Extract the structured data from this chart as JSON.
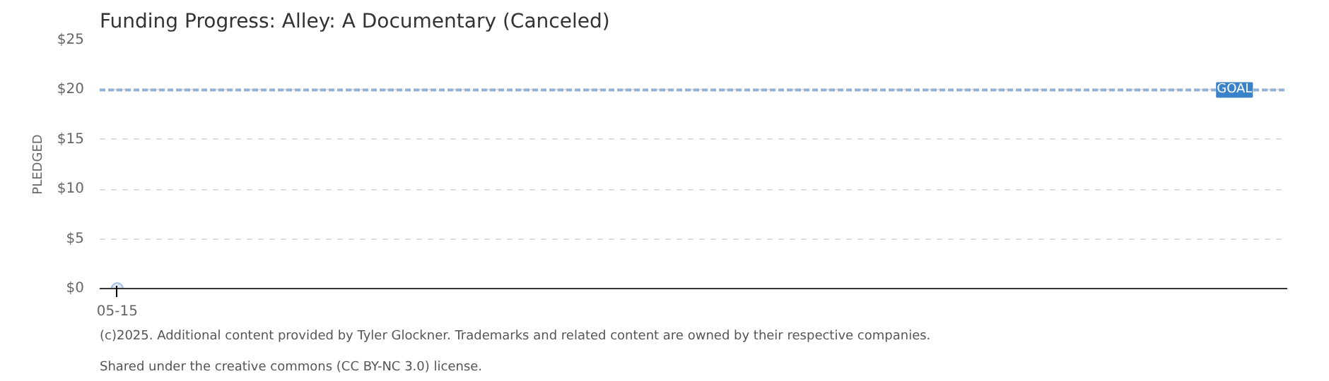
{
  "chart_data": {
    "type": "scatter",
    "title": "Funding Progress: Alley: A Documentary (Canceled)",
    "ylabel": "PLEDGED",
    "categories": [
      "05-15"
    ],
    "series": [
      {
        "color": "#9fbfdf",
        "values": [
          0
        ]
      }
    ],
    "ylim": [
      0,
      25
    ],
    "yticks": [
      {
        "value": 0,
        "label": "$0"
      },
      {
        "value": 5,
        "label": "$5"
      },
      {
        "value": 10,
        "label": "$10"
      },
      {
        "value": 15,
        "label": "$15"
      },
      {
        "value": 20,
        "label": "$20"
      },
      {
        "value": 25,
        "label": "$25"
      }
    ],
    "ref_lines": [
      {
        "axis": "y",
        "value": 20,
        "label": "GOAL",
        "color": "#8fb3d6",
        "line_style": "dashed"
      }
    ],
    "grid": "y",
    "marker": "circle",
    "annotations": [
      "(c)2025. Additional content provided by Tyler Glockner. Trademarks and related content are owned by their respective companies.",
      "Shared under the creative commons (CC BY-NC 3.0) license."
    ]
  }
}
